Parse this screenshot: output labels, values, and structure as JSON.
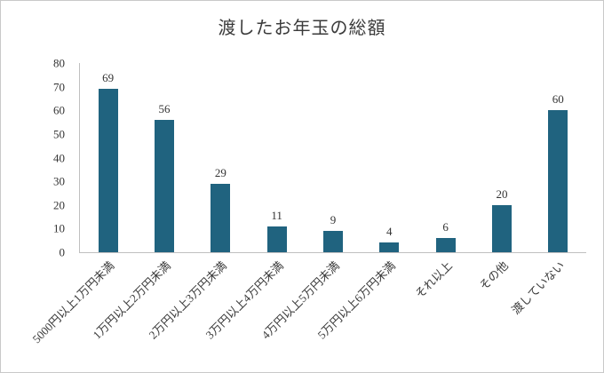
{
  "chart_data": {
    "type": "bar",
    "title": "渡したお年玉の総額",
    "categories": [
      "5000円以上1万円未満",
      "1万円以上2万円未満",
      "2万円以上3万円未満",
      "3万円以上4万円未満",
      "4万円以上5万円未満",
      "5万円以上6万円未満",
      "それ以上",
      "その他",
      "渡していない"
    ],
    "values": [
      69,
      56,
      29,
      11,
      9,
      4,
      6,
      20,
      60
    ],
    "xlabel": "",
    "ylabel": "",
    "ylim": [
      0,
      80
    ],
    "yticks": [
      0,
      10,
      20,
      30,
      40,
      50,
      60,
      70,
      80
    ],
    "grid": false,
    "legend_position": "none",
    "data_labels": true,
    "bar_color": "#20637f"
  },
  "colors": {
    "bar": "#20637f",
    "axis_line": "#bfbfbf",
    "text": "#333333",
    "frame_border": "#c9c9c9",
    "background": "#ffffff"
  }
}
